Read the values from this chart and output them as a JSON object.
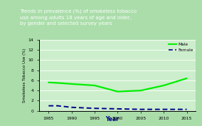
{
  "title_line1": "Trends in prevalence (%) of smokeless tobacco",
  "title_line2": "use among adults 18 years of age and older,",
  "title_line3": "by gender and selected survey years",
  "title_bg": "#001a4d",
  "title_color": "#ffffff",
  "outer_bg": "#aaddaa",
  "chart_bg": "#cceecc",
  "xlabel": "Year",
  "ylabel": "Smokeless Tobacco Use (%)",
  "xlim": [
    1983,
    2017
  ],
  "ylim": [
    0,
    14
  ],
  "yticks": [
    0,
    2,
    4,
    6,
    8,
    10,
    12,
    14
  ],
  "xticks": [
    1985,
    1990,
    1995,
    2000,
    2005,
    2010,
    2015
  ],
  "male_years": [
    1985,
    1987,
    1990,
    1995,
    2000,
    2005,
    2010,
    2015
  ],
  "male_values": [
    5.6,
    5.5,
    5.3,
    5.0,
    3.8,
    4.0,
    5.0,
    6.4
  ],
  "female_years": [
    1985,
    1987,
    1990,
    1995,
    2000,
    2005,
    2010,
    2015
  ],
  "female_values": [
    1.0,
    1.0,
    0.7,
    0.5,
    0.4,
    0.3,
    0.3,
    0.3
  ],
  "male_color": "#00ee00",
  "female_color": "#00008b",
  "male_lw": 1.6,
  "female_lw": 1.4,
  "legend_male": "Male",
  "legend_female": "Female",
  "xlabel_color": "#000080",
  "title_fontsize": 5.0,
  "tick_fontsize": 4.3,
  "ylabel_fontsize": 4.0,
  "xlabel_fontsize": 5.5,
  "legend_fontsize": 4.2
}
